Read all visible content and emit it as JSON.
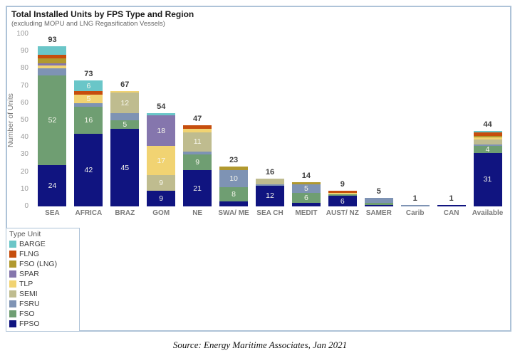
{
  "frame_border_color": "#aec3d8",
  "source_line": "Source: Energy Maritime Associates, Jan 2021",
  "chart_data": {
    "type": "bar",
    "stacked": true,
    "title": "Total Installed Units by FPS Type and Region",
    "subtitle": "(excluding MOPU and LNG Regasification Vessels)",
    "ylabel": "Number of Units",
    "xlabel": "",
    "ylim": [
      0,
      100
    ],
    "yticks": [
      0,
      10,
      20,
      30,
      40,
      50,
      60,
      70,
      80,
      90,
      100
    ],
    "grid": false,
    "legend_title": "Type Unit",
    "legend_position": "bottom-left",
    "categories": [
      "SEA",
      "AFRICA",
      "BRAZ",
      "GOM",
      "NE",
      "SWA/ ME",
      "SEA CH",
      "MEDIT",
      "AUST/ NZ",
      "SAMER",
      "Carib",
      "CAN",
      "Available"
    ],
    "totals": [
      93,
      73,
      67,
      54,
      47,
      23,
      16,
      14,
      9,
      5,
      1,
      1,
      44
    ],
    "series": [
      {
        "name": "FPSO",
        "color": "#101480",
        "values": [
          24,
          42,
          45,
          9,
          21,
          3,
          12,
          2,
          6,
          1,
          0,
          1,
          31
        ],
        "labels": [
          "24",
          "42",
          "45",
          "9",
          "21",
          "",
          "12",
          "",
          "6",
          "",
          "",
          "",
          "31"
        ]
      },
      {
        "name": "FSO",
        "color": "#6f9e72",
        "values": [
          52,
          16,
          5,
          0,
          9,
          8,
          0,
          6,
          1,
          1,
          0,
          0,
          4
        ],
        "labels": [
          "52",
          "16",
          "5",
          "",
          "9",
          "8",
          "",
          "6",
          "",
          "",
          "",
          "",
          "4"
        ]
      },
      {
        "name": "FSRU",
        "color": "#7e93b4",
        "values": [
          4,
          2,
          4,
          0,
          2,
          10,
          1,
          5,
          0,
          3,
          1,
          0,
          1
        ],
        "labels": [
          "",
          "",
          "",
          "",
          "",
          "10",
          "",
          "5",
          "",
          "",
          "",
          "",
          ""
        ]
      },
      {
        "name": "SEMI",
        "color": "#bfbc8f",
        "values": [
          0,
          0,
          12,
          9,
          11,
          0,
          3,
          0,
          0,
          0,
          0,
          0,
          3
        ],
        "labels": [
          "",
          "",
          "12",
          "9",
          "11",
          "",
          "",
          "",
          "",
          "",
          "",
          "",
          ""
        ]
      },
      {
        "name": "TLP",
        "color": "#f1d372",
        "values": [
          2,
          5,
          1,
          17,
          2,
          0,
          0,
          0,
          1,
          0,
          0,
          0,
          1
        ],
        "labels": [
          "",
          "5",
          "",
          "17",
          "",
          "",
          "",
          "",
          "",
          "",
          "",
          "",
          ""
        ]
      },
      {
        "name": "SPAR",
        "color": "#8576ad",
        "values": [
          1,
          0,
          0,
          18,
          0,
          0,
          0,
          0,
          0,
          0,
          0,
          0,
          0
        ],
        "labels": [
          "",
          "",
          "",
          "18",
          "",
          "",
          "",
          "",
          "",
          "",
          "",
          "",
          ""
        ]
      },
      {
        "name": "FSO (LNG)",
        "color": "#b1992f",
        "values": [
          3,
          0,
          0,
          0,
          0,
          2,
          0,
          1,
          0,
          0,
          0,
          0,
          1
        ],
        "labels": [
          "",
          "",
          "",
          "",
          "",
          "",
          "",
          "",
          "",
          "",
          "",
          "",
          ""
        ]
      },
      {
        "name": "FLNG",
        "color": "#c64e0d",
        "values": [
          2,
          2,
          0,
          0,
          2,
          0,
          0,
          0,
          1,
          0,
          0,
          0,
          2
        ],
        "labels": [
          "",
          "",
          "",
          "",
          "",
          "",
          "",
          "",
          "",
          "",
          "",
          "",
          ""
        ]
      },
      {
        "name": "BARGE",
        "color": "#6ac6c8",
        "values": [
          5,
          6,
          0,
          1,
          0,
          0,
          0,
          0,
          0,
          0,
          0,
          0,
          1
        ],
        "labels": [
          "",
          "6",
          "",
          "",
          "",
          "",
          "",
          "",
          "",
          "",
          "",
          "",
          ""
        ]
      }
    ]
  }
}
